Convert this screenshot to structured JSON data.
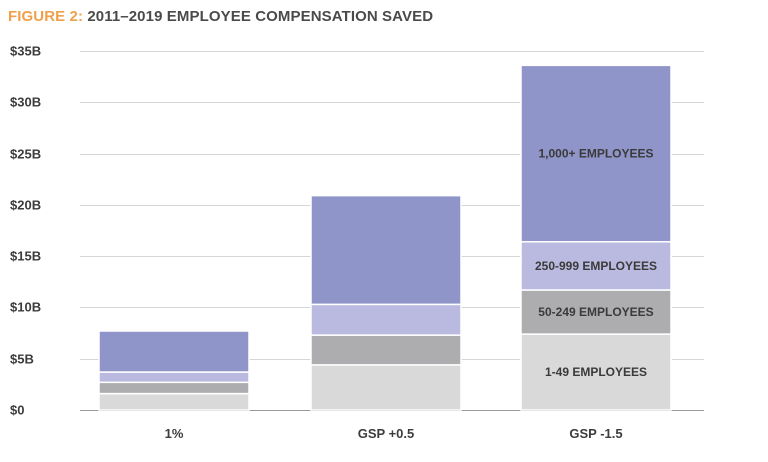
{
  "title_label": "FIGURE 2:",
  "title_text": "2011–2019 EMPLOYEE COMPENSATION SAVED",
  "chart_data": {
    "type": "bar",
    "stacked": true,
    "title": "FIGURE 2: 2011–2019 EMPLOYEE COMPENSATION SAVED",
    "categories": [
      "1%",
      "GSP +0.5",
      "GSP -1.5"
    ],
    "yticks": [
      "$0",
      "$5B",
      "$10B",
      "$15B",
      "$20B",
      "$25B",
      "$30B",
      "$35B"
    ],
    "ylim": [
      0,
      35
    ],
    "yunit": "billions of dollars",
    "grid": true,
    "series": [
      {
        "name": "1-49 EMPLOYEES",
        "values": [
          1.6,
          4.4,
          7.4
        ],
        "color": "#d9d9d9"
      },
      {
        "name": "50-249 EMPLOYEES",
        "values": [
          1.1,
          2.9,
          4.3
        ],
        "color": "#adadaf"
      },
      {
        "name": "250-999 EMPLOYEES",
        "values": [
          1.0,
          3.0,
          4.7
        ],
        "color": "#babae0"
      },
      {
        "name": "1,000+ EMPLOYEES",
        "values": [
          4.0,
          10.6,
          17.2
        ],
        "color": "#9095c9"
      }
    ],
    "segment_labels_on_category": "GSP -1.5"
  }
}
